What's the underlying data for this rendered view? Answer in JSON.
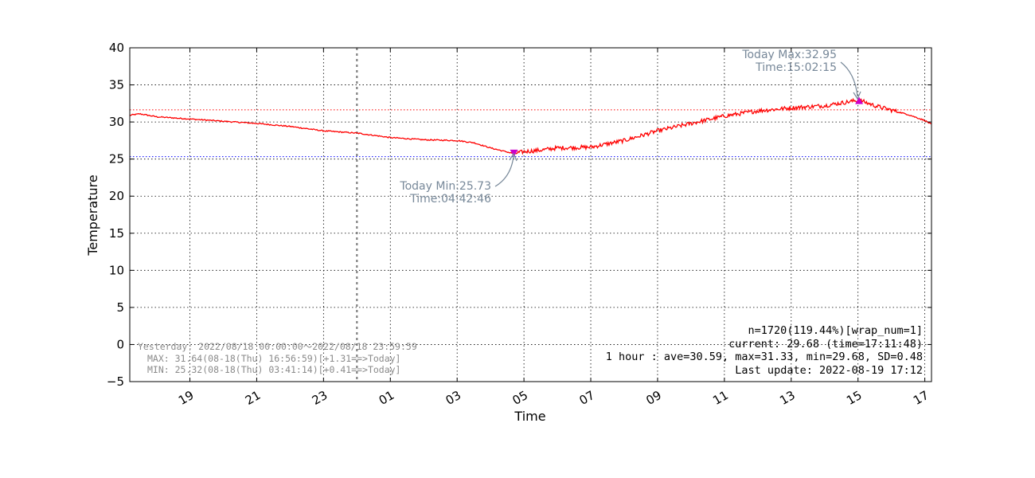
{
  "chart_data": {
    "type": "line",
    "xlabel": "Time",
    "ylabel": "Temperature",
    "ylim": [
      -5,
      40
    ],
    "xlim": [
      "2022-08-18 17:12",
      "2022-08-19 17:12"
    ],
    "yticks": [
      -5,
      0,
      5,
      10,
      15,
      20,
      25,
      30,
      35,
      40
    ],
    "ytick_labels": [
      "−5",
      "0",
      "5",
      "10",
      "15",
      "20",
      "25",
      "30",
      "35",
      "40"
    ],
    "xticks": [
      "19",
      "21",
      "23",
      "01",
      "03",
      "05",
      "07",
      "09",
      "11",
      "13",
      "15",
      "17"
    ],
    "grid": true,
    "series": [
      {
        "color": "#ff0000",
        "x": [
          "2022-08-18 17:12",
          "2022-08-18 17:30",
          "2022-08-18 18:00",
          "2022-08-18 19:00",
          "2022-08-18 20:00",
          "2022-08-18 21:00",
          "2022-08-18 22:00",
          "2022-08-18 23:00",
          "2022-08-19 00:00",
          "2022-08-19 01:00",
          "2022-08-19 02:00",
          "2022-08-19 03:00",
          "2022-08-19 03:30",
          "2022-08-19 04:00",
          "2022-08-19 04:42",
          "2022-08-19 05:00",
          "2022-08-19 05:30",
          "2022-08-19 06:00",
          "2022-08-19 07:00",
          "2022-08-19 08:00",
          "2022-08-19 09:00",
          "2022-08-19 10:00",
          "2022-08-19 11:00",
          "2022-08-19 12:00",
          "2022-08-19 13:00",
          "2022-08-19 14:00",
          "2022-08-19 15:02",
          "2022-08-19 15:30",
          "2022-08-19 16:00",
          "2022-08-19 16:30",
          "2022-08-19 17:00",
          "2022-08-19 17:12"
        ],
        "y": [
          30.9,
          31.1,
          30.7,
          30.4,
          30.1,
          29.8,
          29.4,
          28.8,
          28.5,
          27.9,
          27.6,
          27.5,
          27.2,
          26.5,
          25.73,
          26.0,
          26.2,
          26.5,
          26.6,
          27.5,
          28.8,
          29.8,
          30.8,
          31.5,
          31.9,
          32.2,
          32.95,
          32.2,
          31.6,
          31.0,
          30.2,
          29.68
        ]
      }
    ],
    "ref_lines": {
      "yesterday_max": {
        "y": 31.64,
        "color": "#ff0000"
      },
      "yesterday_min": {
        "y": 25.32,
        "color": "#0000ff"
      },
      "midnight": {
        "x": "2022-08-19 00:00",
        "color": "#808080"
      }
    },
    "markers": {
      "today_min": {
        "x": "2022-08-19 04:42",
        "y": 25.73,
        "color": "#cc00cc"
      },
      "today_max": {
        "x": "2022-08-19 15:02",
        "y": 32.95,
        "color": "#cc00cc"
      }
    },
    "annotations": {
      "min_line1": "Today Min:25.73",
      "min_line2": "Time:04:42:46",
      "max_line1": "Today Max:32.95",
      "max_line2": "Time:15:02:15"
    },
    "stats_text": [
      "n=1720(119.44%)[wrap_num=1]",
      "current: 29.68 (time=17:11:48)",
      "1 hour : ave=30.59, max=31.33, min=29.68, SD=0.48",
      "Last update: 2022-08-19 17:12"
    ],
    "yesterday_text": [
      "Yesterday: 2022/08/18 00:00:00～2022/08/18 23:59:59",
      "MAX: 31.64(08-18(Thu) 16:56:59)[+1.31==>Today]",
      "MIN: 25.32(08-18(Thu) 03:41:14)[+0.41==>Today]"
    ]
  }
}
